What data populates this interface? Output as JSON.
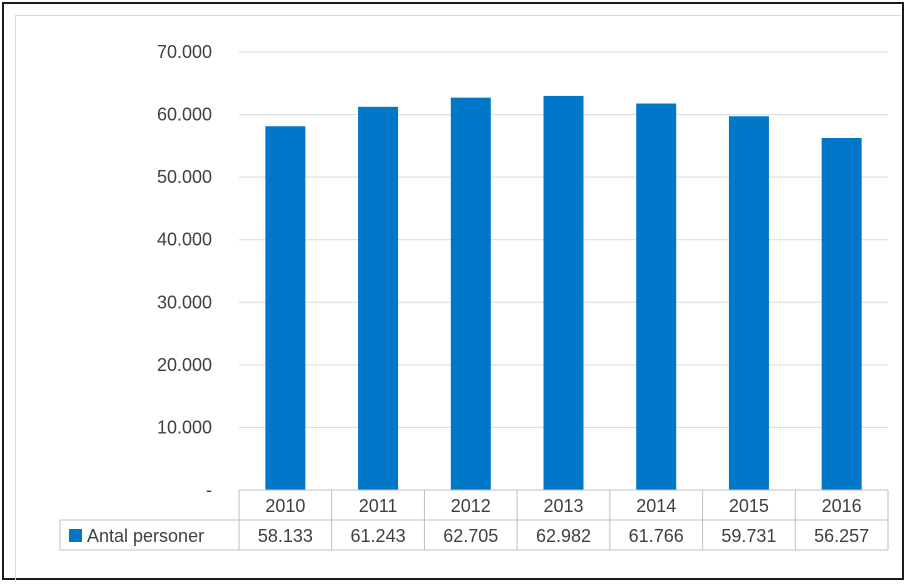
{
  "chart_data": {
    "type": "bar",
    "categories": [
      "2010",
      "2011",
      "2012",
      "2013",
      "2014",
      "2015",
      "2016"
    ],
    "series": [
      {
        "name": "Antal personer",
        "values": [
          58133,
          61243,
          62705,
          62982,
          61766,
          59731,
          56257
        ],
        "value_labels": [
          "58.133",
          "61.243",
          "62.705",
          "62.982",
          "61.766",
          "59.731",
          "56.257"
        ],
        "color": "#0077c8"
      }
    ],
    "y_ticks": [
      {
        "value": 0,
        "label": "-"
      },
      {
        "value": 10000,
        "label": "10.000"
      },
      {
        "value": 20000,
        "label": "20.000"
      },
      {
        "value": 30000,
        "label": "30.000"
      },
      {
        "value": 40000,
        "label": "40.000"
      },
      {
        "value": 50000,
        "label": "50.000"
      },
      {
        "value": 60000,
        "label": "60.000"
      },
      {
        "value": 70000,
        "label": "70.000"
      }
    ],
    "ylim": [
      0,
      70000
    ],
    "grid": true,
    "legend": "data-table-left",
    "data_table": true
  }
}
